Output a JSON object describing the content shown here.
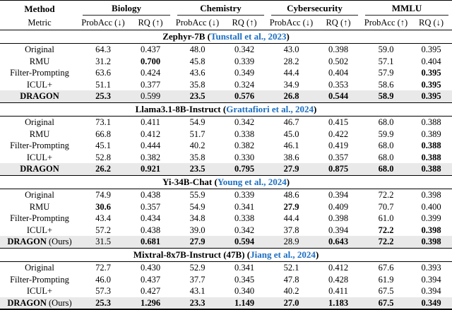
{
  "colors": {
    "citation_blue": "#1b6ec2",
    "row_highlight": "#e9e9e9"
  },
  "table": {
    "col_headers": {
      "method": "Method",
      "metric": "Metric",
      "groups": [
        {
          "label": "Biology",
          "sub": [
            "ProbAcc (↓)",
            "RQ (↑)"
          ]
        },
        {
          "label": "Chemistry",
          "sub": [
            "ProbAcc (↓)",
            "RQ (↑)"
          ]
        },
        {
          "label": "Cybersecurity",
          "sub": [
            "ProbAcc (↓)",
            "RQ (↑)"
          ]
        },
        {
          "label": "MMLU",
          "sub": [
            "ProbAcc (↑)",
            "RQ (↓)"
          ]
        }
      ]
    },
    "sections": [
      {
        "model": "Zephyr-7B",
        "citation": "Tunstall et al., 2023",
        "rows": [
          {
            "label": "Original",
            "suffix": "",
            "label_bold": false,
            "highlight": false,
            "values": [
              "64.3",
              "0.437",
              "48.0",
              "0.342",
              "43.0",
              "0.398",
              "59.0",
              "0.395"
            ],
            "bold": [
              false,
              false,
              false,
              false,
              false,
              false,
              false,
              false
            ]
          },
          {
            "label": "RMU",
            "suffix": "",
            "label_bold": false,
            "highlight": false,
            "values": [
              "31.2",
              "0.700",
              "45.8",
              "0.339",
              "28.2",
              "0.502",
              "57.1",
              "0.404"
            ],
            "bold": [
              false,
              true,
              false,
              false,
              false,
              false,
              false,
              false
            ]
          },
          {
            "label": "Filter-Prompting",
            "suffix": "",
            "label_bold": false,
            "highlight": false,
            "values": [
              "63.6",
              "0.424",
              "43.6",
              "0.349",
              "44.4",
              "0.404",
              "57.9",
              "0.395"
            ],
            "bold": [
              false,
              false,
              false,
              false,
              false,
              false,
              false,
              true
            ]
          },
          {
            "label": "ICUL+",
            "suffix": "",
            "label_bold": false,
            "highlight": false,
            "values": [
              "51.1",
              "0.377",
              "35.8",
              "0.324",
              "34.9",
              "0.353",
              "58.6",
              "0.395"
            ],
            "bold": [
              false,
              false,
              false,
              false,
              false,
              false,
              false,
              true
            ]
          },
          {
            "label": "DRAGON",
            "suffix": "",
            "label_bold": true,
            "highlight": true,
            "values": [
              "25.3",
              "0.599",
              "23.5",
              "0.576",
              "26.8",
              "0.544",
              "58.9",
              "0.395"
            ],
            "bold": [
              true,
              false,
              true,
              true,
              true,
              true,
              true,
              true
            ]
          }
        ]
      },
      {
        "model": "Llama3.1-8B-Instruct",
        "citation": "Grattafiori et al., 2024",
        "rows": [
          {
            "label": "Original",
            "suffix": "",
            "label_bold": false,
            "highlight": false,
            "values": [
              "73.1",
              "0.411",
              "54.9",
              "0.342",
              "46.7",
              "0.415",
              "68.0",
              "0.388"
            ],
            "bold": [
              false,
              false,
              false,
              false,
              false,
              false,
              false,
              false
            ]
          },
          {
            "label": "RMU",
            "suffix": "",
            "label_bold": false,
            "highlight": false,
            "values": [
              "66.8",
              "0.412",
              "51.7",
              "0.338",
              "45.0",
              "0.422",
              "59.9",
              "0.389"
            ],
            "bold": [
              false,
              false,
              false,
              false,
              false,
              false,
              false,
              false
            ]
          },
          {
            "label": "Filter-Prompting",
            "suffix": "",
            "label_bold": false,
            "highlight": false,
            "values": [
              "45.1",
              "0.444",
              "40.2",
              "0.382",
              "46.1",
              "0.419",
              "68.0",
              "0.388"
            ],
            "bold": [
              false,
              false,
              false,
              false,
              false,
              false,
              false,
              true
            ]
          },
          {
            "label": "ICUL+",
            "suffix": "",
            "label_bold": false,
            "highlight": false,
            "values": [
              "52.8",
              "0.382",
              "35.8",
              "0.330",
              "38.6",
              "0.357",
              "68.0",
              "0.388"
            ],
            "bold": [
              false,
              false,
              false,
              false,
              false,
              false,
              false,
              true
            ]
          },
          {
            "label": "DRAGON",
            "suffix": "",
            "label_bold": true,
            "highlight": true,
            "values": [
              "26.2",
              "0.921",
              "23.5",
              "0.795",
              "27.9",
              "0.875",
              "68.0",
              "0.388"
            ],
            "bold": [
              true,
              true,
              true,
              true,
              true,
              true,
              true,
              true
            ]
          }
        ]
      },
      {
        "model": "Yi-34B-Chat",
        "citation": "Young et al., 2024",
        "rows": [
          {
            "label": "Original",
            "suffix": "",
            "label_bold": false,
            "highlight": false,
            "values": [
              "74.9",
              "0.438",
              "55.9",
              "0.339",
              "48.6",
              "0.394",
              "72.2",
              "0.398"
            ],
            "bold": [
              false,
              false,
              false,
              false,
              false,
              false,
              false,
              false
            ]
          },
          {
            "label": "RMU",
            "suffix": "",
            "label_bold": false,
            "highlight": false,
            "values": [
              "30.6",
              "0.357",
              "54.9",
              "0.341",
              "27.9",
              "0.409",
              "70.7",
              "0.400"
            ],
            "bold": [
              true,
              false,
              false,
              false,
              true,
              false,
              false,
              false
            ]
          },
          {
            "label": "Filter-Prompting",
            "suffix": "",
            "label_bold": false,
            "highlight": false,
            "values": [
              "43.4",
              "0.434",
              "34.8",
              "0.338",
              "44.4",
              "0.398",
              "61.0",
              "0.399"
            ],
            "bold": [
              false,
              false,
              false,
              false,
              false,
              false,
              false,
              false
            ]
          },
          {
            "label": "ICUL+",
            "suffix": "",
            "label_bold": false,
            "highlight": false,
            "values": [
              "57.2",
              "0.438",
              "39.0",
              "0.342",
              "37.8",
              "0.394",
              "72.2",
              "0.398"
            ],
            "bold": [
              false,
              false,
              false,
              false,
              false,
              false,
              true,
              true
            ]
          },
          {
            "label": "DRAGON",
            "suffix": " (Ours)",
            "label_bold": true,
            "highlight": true,
            "values": [
              "31.5",
              "0.681",
              "27.9",
              "0.594",
              "28.9",
              "0.643",
              "72.2",
              "0.398"
            ],
            "bold": [
              false,
              true,
              true,
              true,
              false,
              true,
              true,
              true
            ]
          }
        ]
      },
      {
        "model": "Mixtral-8x7B-Instruct (47B)",
        "citation": "Jiang et al., 2024",
        "rows": [
          {
            "label": "Original",
            "suffix": "",
            "label_bold": false,
            "highlight": false,
            "values": [
              "72.7",
              "0.430",
              "52.9",
              "0.341",
              "52.1",
              "0.412",
              "67.6",
              "0.393"
            ],
            "bold": [
              false,
              false,
              false,
              false,
              false,
              false,
              false,
              false
            ]
          },
          {
            "label": "Filter-Prompting",
            "suffix": "",
            "label_bold": false,
            "highlight": false,
            "values": [
              "46.0",
              "0.437",
              "37.7",
              "0.345",
              "47.8",
              "0.428",
              "61.9",
              "0.394"
            ],
            "bold": [
              false,
              false,
              false,
              false,
              false,
              false,
              false,
              false
            ]
          },
          {
            "label": "ICUL+",
            "suffix": "",
            "label_bold": false,
            "highlight": false,
            "values": [
              "57.3",
              "0.427",
              "43.1",
              "0.340",
              "40.2",
              "0.411",
              "67.5",
              "0.394"
            ],
            "bold": [
              false,
              false,
              false,
              false,
              false,
              false,
              false,
              false
            ]
          },
          {
            "label": "DRAGON",
            "suffix": " (Ours)",
            "label_bold": true,
            "highlight": true,
            "values": [
              "25.3",
              "1.296",
              "23.3",
              "1.149",
              "27.0",
              "1.183",
              "67.5",
              "0.349"
            ],
            "bold": [
              true,
              true,
              true,
              true,
              true,
              true,
              true,
              true
            ]
          }
        ]
      }
    ]
  }
}
